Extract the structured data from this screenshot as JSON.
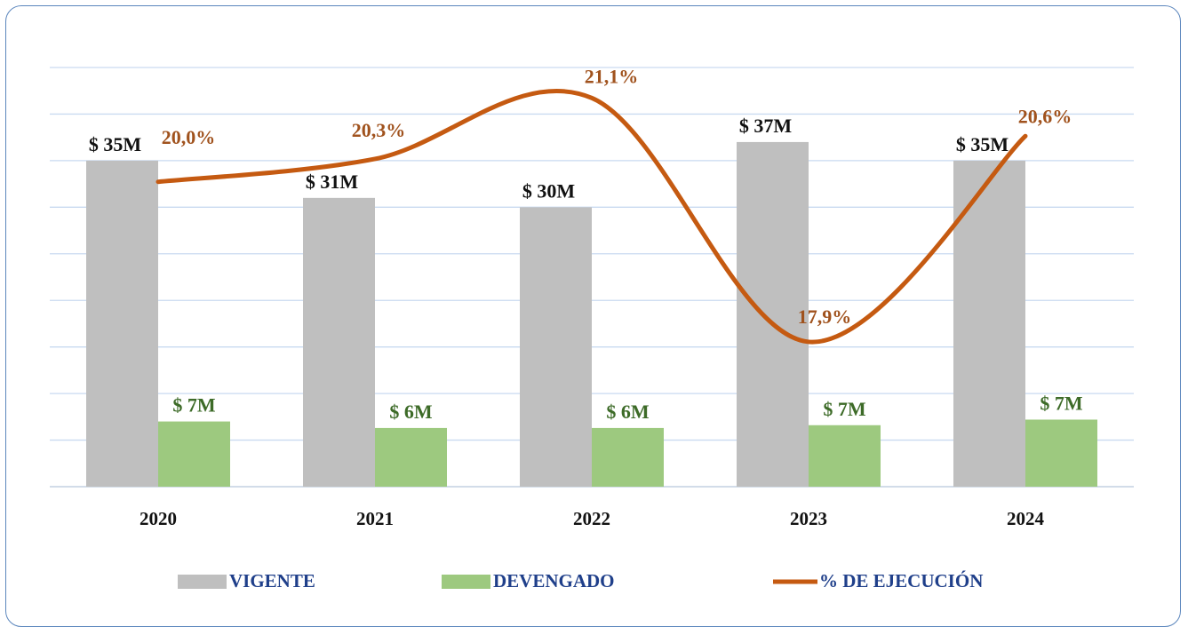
{
  "chart_data": {
    "type": "bar_line",
    "categories": [
      "2020",
      "2021",
      "2022",
      "2023",
      "2024"
    ],
    "series": [
      {
        "name": "VIGENTE",
        "color": "#bfbfbf",
        "values": [
          35,
          31,
          30,
          37,
          35
        ],
        "value_labels": [
          "$ 35M",
          "$ 31M",
          "$ 30M",
          "$ 37M",
          "$ 35M"
        ]
      },
      {
        "name": "DEVENGADO",
        "color": "#9dc97f",
        "values": [
          7.0,
          6.3,
          6.3,
          6.6,
          7.2
        ],
        "value_labels": [
          "$ 7M",
          "$ 6M",
          "$ 6M",
          "$ 7M",
          "$ 7M"
        ]
      },
      {
        "name": "% DE EJECUCIÓN",
        "color": "#c55a11",
        "axis": "y2",
        "values": [
          20.0,
          20.3,
          21.1,
          17.9,
          20.6
        ],
        "value_labels": [
          "20,0%",
          "20,3%",
          "21,1%",
          "17,9%",
          "20,6%"
        ]
      }
    ],
    "ylim": [
      0,
      45
    ],
    "yticks": [
      0,
      5,
      10,
      15,
      20,
      25,
      30,
      35,
      40,
      45
    ],
    "y2lim": [
      16,
      21.5
    ],
    "grid": true,
    "legend": "bottom"
  }
}
